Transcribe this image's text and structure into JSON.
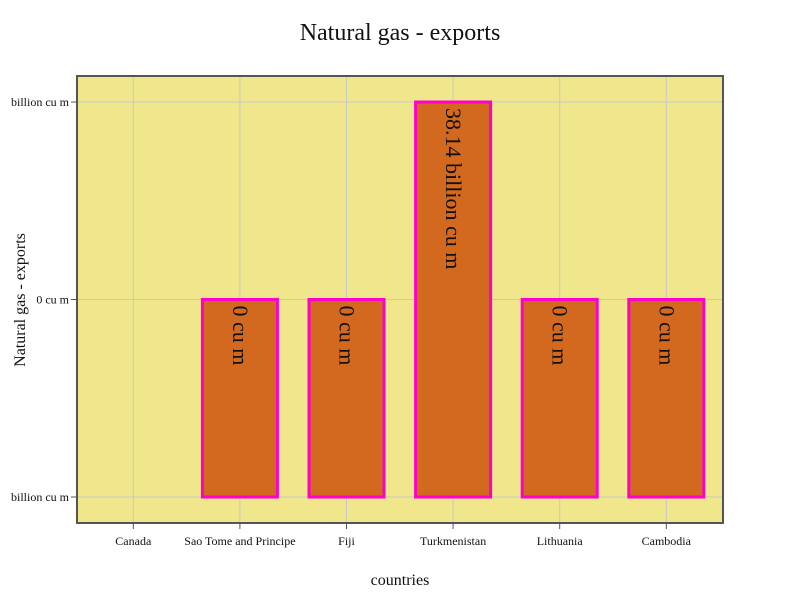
{
  "chart_data": {
    "type": "bar",
    "title": "Natural gas - exports",
    "xlabel": "countries",
    "ylabel": "Natural gas - exports",
    "categories": [
      "Canada",
      "Sao Tome and Principe",
      "Fiji",
      "Turkmenistan",
      "Lithuania",
      "Cambodia"
    ],
    "values": [
      null,
      0,
      0,
      38.14,
      0,
      0
    ],
    "data_labels": [
      "",
      "0 cu m",
      "0 cu m",
      "38.14 billion cu m",
      "0 cu m",
      "0 cu m"
    ],
    "y_tick_labels": [
      "billion cu m",
      "0 cu m",
      "billion cu m"
    ],
    "y_tick_values": [
      -38.14,
      0,
      38.14
    ],
    "ylim": [
      -38.14,
      38.14
    ],
    "grid": true,
    "colors": {
      "plot_background": "#F0E68C",
      "bar_fill": "#D2691E",
      "bar_outline": "#FF00CC",
      "grid": "#C8C8C8",
      "frame": "#555555"
    }
  }
}
